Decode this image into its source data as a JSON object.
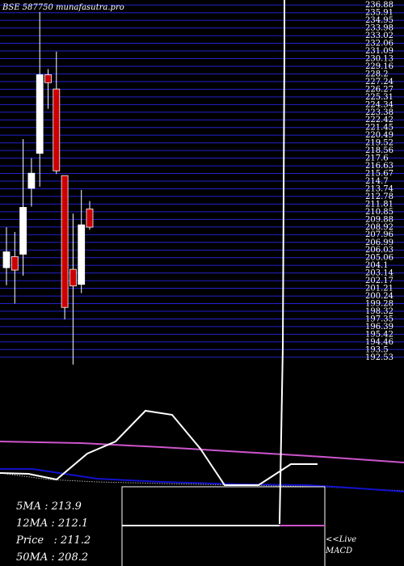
{
  "header": {
    "code": "BSE 587750",
    "site": "munafasutra.pro"
  },
  "stats": [
    {
      "label": "5MA",
      "value": "213.9"
    },
    {
      "label": "12MA",
      "value": "212.1"
    },
    {
      "label": "Price",
      "value": "211.2"
    },
    {
      "label": "50MA",
      "value": "208.2"
    }
  ],
  "live_label": "<<Live",
  "macd_label": "MACD",
  "chart_data": {
    "type": "candlestick",
    "price_axis": {
      "min": 192,
      "max": 237,
      "ticks": [
        236.88,
        235.91,
        234.95,
        233.98,
        233.02,
        232.06,
        231.09,
        230.13,
        229.16,
        228.2,
        227.24,
        226.27,
        225.31,
        224.34,
        223.38,
        222.42,
        221.45,
        220.49,
        219.52,
        218.56,
        217.6,
        216.63,
        215.67,
        214.7,
        213.74,
        212.78,
        211.81,
        210.85,
        209.88,
        208.92,
        207.96,
        206.99,
        206.03,
        205.06,
        204.1,
        203.14,
        202.17,
        201.21,
        200.24,
        199.28,
        198.32,
        197.35,
        196.39,
        195.42,
        194.46,
        193.5,
        192.53
      ],
      "gridlines": true
    },
    "candles": [
      {
        "open": 203.8,
        "high": 208.9,
        "low": 201.6,
        "close": 205.8,
        "dir": "up"
      },
      {
        "open": 205.2,
        "high": 208.3,
        "low": 199.3,
        "close": 203.5,
        "dir": "down"
      },
      {
        "open": 205.5,
        "high": 220.0,
        "low": 202.8,
        "close": 211.4,
        "dir": "up"
      },
      {
        "open": 213.8,
        "high": 217.6,
        "low": 211.5,
        "close": 215.7,
        "dir": "up"
      },
      {
        "open": 218.2,
        "high": 236.0,
        "low": 214.0,
        "close": 228.1,
        "dir": "up"
      },
      {
        "open": 228.1,
        "high": 228.8,
        "low": 223.8,
        "close": 227.1,
        "dir": "down"
      },
      {
        "open": 226.3,
        "high": 231.0,
        "low": 215.6,
        "close": 216.0,
        "dir": "down"
      },
      {
        "open": 215.4,
        "high": 215.4,
        "low": 197.3,
        "close": 198.8,
        "dir": "down"
      },
      {
        "open": 203.6,
        "high": 210.6,
        "low": 191.6,
        "close": 201.5,
        "dir": "down"
      },
      {
        "open": 201.7,
        "high": 213.6,
        "low": 200.6,
        "close": 209.2,
        "dir": "up"
      },
      {
        "open": 211.2,
        "high": 212.2,
        "low": 208.6,
        "close": 208.9,
        "dir": "down"
      }
    ],
    "colors": {
      "up": "#ffffff",
      "down": "#cc0000",
      "grid": "#2222cc",
      "ma_short": "#ffffff",
      "ma_mid": "#cc55cc",
      "ma_long": "#1111cc",
      "macd": "#ffffff",
      "macd_signal": "#cc55cc"
    }
  }
}
